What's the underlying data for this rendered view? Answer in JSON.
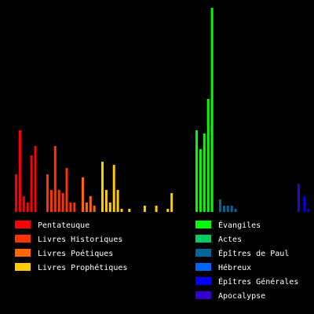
{
  "chart_data": {
    "type": "bar",
    "title": "",
    "xlabel": "",
    "ylabel": "",
    "ylim": [
      0,
      260
    ],
    "grid": false,
    "legend_placement": "bottom",
    "groups": [
      {
        "name": "Pentateuque",
        "color": "#ff0000",
        "values": [
          48,
          104,
          20,
          12,
          72,
          84
        ]
      },
      {
        "name": "Livres Historiques",
        "color": "#ff3300",
        "values": [
          48,
          28,
          84,
          28,
          24,
          56,
          12,
          12,
          0,
          0
        ]
      },
      {
        "name": "Livres Poétiques",
        "color": "#ff6600",
        "values": [
          44,
          12,
          20,
          8
        ]
      },
      {
        "name": "Livres Prophétiques",
        "color": "#ffcc00",
        "values": [
          64,
          28,
          12,
          60,
          28,
          4,
          0,
          4,
          0,
          0,
          0,
          8,
          0,
          0,
          8,
          0,
          0,
          4,
          24
        ]
      },
      {
        "name": "Évangiles",
        "color": "#00ff00",
        "values": [
          104,
          80,
          100,
          144,
          260
        ]
      },
      {
        "name": "Actes",
        "color": "#00cc66",
        "values": [
          0
        ]
      },
      {
        "name": "Épîtres de Paul",
        "color": "#006699",
        "values": [
          16,
          8,
          8,
          8,
          4
        ]
      },
      {
        "name": "Hébreux",
        "color": "#0066ff",
        "values": [
          0
        ]
      },
      {
        "name": "Épîtres Générales",
        "color": "#0000ff",
        "values": [
          0,
          0,
          0,
          0,
          0,
          0,
          0,
          0,
          0,
          0,
          0,
          0,
          0,
          0,
          0,
          0,
          20,
          4,
          0
        ]
      },
      {
        "name": "Apocalypse",
        "color": "#3300cc",
        "values": [
          36
        ]
      }
    ],
    "legend": [
      {
        "name": "Pentateuque",
        "color": "#ff0000"
      },
      {
        "name": "Livres Historiques",
        "color": "#ff3300"
      },
      {
        "name": "Livres Poétiques",
        "color": "#ff6600"
      },
      {
        "name": "Livres Prophétiques",
        "color": "#ffcc00"
      },
      {
        "name": "Évangiles",
        "color": "#00ff00"
      },
      {
        "name": "Actes",
        "color": "#00cc66"
      },
      {
        "name": "Épîtres de Paul",
        "color": "#006699"
      },
      {
        "name": "Hébreux",
        "color": "#0066ff"
      },
      {
        "name": "Épîtres Générales",
        "color": "#0000ff"
      },
      {
        "name": "Apocalypse",
        "color": "#3300cc"
      }
    ]
  }
}
